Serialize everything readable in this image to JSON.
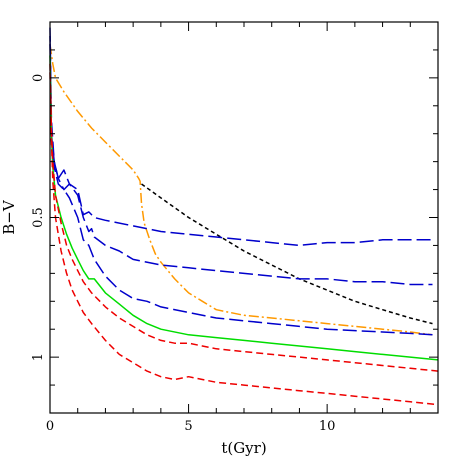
{
  "chart_data": {
    "type": "line",
    "title": "",
    "xlabel": "t(Gyr)",
    "ylabel": "B−V",
    "xlim": [
      0,
      14
    ],
    "ylim": [
      1.2,
      -0.2
    ],
    "y_inverted": true,
    "grid": false,
    "legend": "none",
    "x_ticks": [
      0,
      5,
      10
    ],
    "y_ticks": [
      0,
      0.5,
      1
    ],
    "x_tick_labels": [
      "0",
      "5",
      "10"
    ],
    "y_tick_labels": [
      "0",
      "0.5",
      "1"
    ],
    "x_minor_step": 1,
    "y_minor_step": 0.1,
    "series": [
      {
        "color": "#000000",
        "dash": "4,3",
        "x": [
          3.3,
          4.0,
          5.0,
          6.0,
          7.0,
          8.0,
          9.0,
          10.0,
          11.0,
          12.0,
          13.0,
          13.8
        ],
        "y": [
          0.38,
          0.43,
          0.5,
          0.56,
          0.62,
          0.67,
          0.72,
          0.76,
          0.8,
          0.83,
          0.86,
          0.88
        ]
      },
      {
        "color": "#ff9900",
        "dash": "10,3,2,3",
        "x": [
          0.0,
          0.1,
          0.2,
          0.5,
          1.0,
          1.5,
          2.0,
          2.5,
          3.0,
          3.2,
          3.25,
          3.3,
          3.4,
          3.6,
          3.8,
          4.0,
          4.5,
          5.0,
          5.5,
          6.0,
          7.0,
          8.0,
          9.0,
          10.0,
          11.0,
          12.0,
          13.0,
          13.8
        ],
        "y": [
          -0.12,
          -0.05,
          0.0,
          0.05,
          0.12,
          0.18,
          0.23,
          0.28,
          0.33,
          0.36,
          0.37,
          0.45,
          0.52,
          0.58,
          0.63,
          0.66,
          0.72,
          0.77,
          0.8,
          0.83,
          0.85,
          0.86,
          0.87,
          0.88,
          0.89,
          0.9,
          0.91,
          0.92
        ]
      },
      {
        "color": "#0000cc",
        "dash": "14,5",
        "x": [
          0.0,
          0.05,
          0.15,
          0.3,
          0.5,
          0.7,
          1.0,
          1.2,
          1.4,
          1.6,
          2.0,
          3.0,
          4.0,
          5.0,
          6.0,
          7.0,
          8.0,
          9.0,
          10.0,
          11.0,
          12.0,
          13.0,
          13.8
        ],
        "y": [
          -0.18,
          0.15,
          0.3,
          0.36,
          0.33,
          0.38,
          0.4,
          0.49,
          0.48,
          0.5,
          0.51,
          0.53,
          0.55,
          0.56,
          0.57,
          0.58,
          0.59,
          0.6,
          0.59,
          0.59,
          0.58,
          0.58,
          0.58
        ]
      },
      {
        "color": "#0000cc",
        "dash": "14,5",
        "x": [
          0.0,
          0.05,
          0.15,
          0.3,
          0.5,
          0.7,
          1.0,
          1.2,
          1.4,
          1.5,
          1.6,
          2.0,
          2.5,
          3.0,
          4.0,
          5.0,
          6.0,
          7.0,
          8.0,
          9.0,
          10.0,
          11.0,
          12.0,
          13.0,
          13.8
        ],
        "y": [
          -0.15,
          0.2,
          0.3,
          0.36,
          0.4,
          0.38,
          0.42,
          0.5,
          0.55,
          0.54,
          0.57,
          0.6,
          0.62,
          0.65,
          0.67,
          0.68,
          0.69,
          0.7,
          0.71,
          0.72,
          0.72,
          0.73,
          0.73,
          0.74,
          0.74
        ]
      },
      {
        "color": "#0000cc",
        "dash": "14,5",
        "x": [
          0.0,
          0.05,
          0.15,
          0.3,
          0.5,
          0.7,
          1.0,
          1.2,
          1.4,
          1.6,
          2.0,
          2.5,
          3.0,
          3.5,
          4.0,
          5.0,
          6.0,
          7.0,
          8.0,
          9.0,
          10.0,
          11.0,
          12.0,
          13.0,
          13.8
        ],
        "y": [
          -0.12,
          0.22,
          0.32,
          0.38,
          0.4,
          0.43,
          0.5,
          0.58,
          0.6,
          0.65,
          0.71,
          0.76,
          0.79,
          0.8,
          0.82,
          0.84,
          0.86,
          0.87,
          0.88,
          0.89,
          0.9,
          0.905,
          0.91,
          0.915,
          0.92
        ]
      },
      {
        "color": "#00dd00",
        "dash": "",
        "x": [
          0.0,
          0.05,
          0.1,
          0.2,
          0.4,
          0.6,
          0.8,
          1.0,
          1.2,
          1.4,
          1.6,
          2.0,
          2.5,
          3.0,
          3.5,
          4.0,
          5.0,
          6.0,
          7.0,
          8.0,
          9.0,
          10.0,
          11.0,
          12.0,
          13.0,
          14.0
        ],
        "y": [
          -0.08,
          0.2,
          0.32,
          0.42,
          0.5,
          0.56,
          0.61,
          0.65,
          0.69,
          0.72,
          0.72,
          0.77,
          0.81,
          0.85,
          0.88,
          0.9,
          0.92,
          0.93,
          0.94,
          0.95,
          0.96,
          0.97,
          0.98,
          0.99,
          1.0,
          1.01
        ]
      },
      {
        "color": "#ee0000",
        "dash": "7,4",
        "x": [
          0.0,
          0.05,
          0.1,
          0.2,
          0.4,
          0.6,
          0.8,
          1.0,
          1.2,
          1.5,
          2.0,
          2.5,
          3.0,
          3.5,
          4.0,
          4.5,
          5.0,
          6.0,
          7.0,
          8.0,
          9.0,
          10.0,
          11.0,
          12.0,
          13.0,
          14.0
        ],
        "y": [
          -0.05,
          0.18,
          0.3,
          0.42,
          0.52,
          0.6,
          0.65,
          0.69,
          0.73,
          0.77,
          0.82,
          0.86,
          0.89,
          0.92,
          0.94,
          0.95,
          0.95,
          0.97,
          0.98,
          0.99,
          1.0,
          1.01,
          1.02,
          1.03,
          1.04,
          1.05
        ]
      },
      {
        "color": "#ee0000",
        "dash": "7,4",
        "x": [
          0.0,
          0.05,
          0.1,
          0.2,
          0.4,
          0.6,
          0.8,
          1.0,
          1.2,
          1.5,
          2.0,
          2.5,
          3.0,
          3.5,
          4.0,
          4.5,
          5.0,
          5.5,
          6.0,
          7.0,
          8.0,
          9.0,
          10.0,
          11.0,
          12.0,
          13.0,
          14.0
        ],
        "y": [
          -0.02,
          0.22,
          0.37,
          0.5,
          0.62,
          0.7,
          0.76,
          0.8,
          0.84,
          0.88,
          0.94,
          0.99,
          1.02,
          1.05,
          1.07,
          1.08,
          1.07,
          1.08,
          1.09,
          1.1,
          1.11,
          1.12,
          1.13,
          1.14,
          1.15,
          1.16,
          1.17
        ]
      }
    ]
  }
}
